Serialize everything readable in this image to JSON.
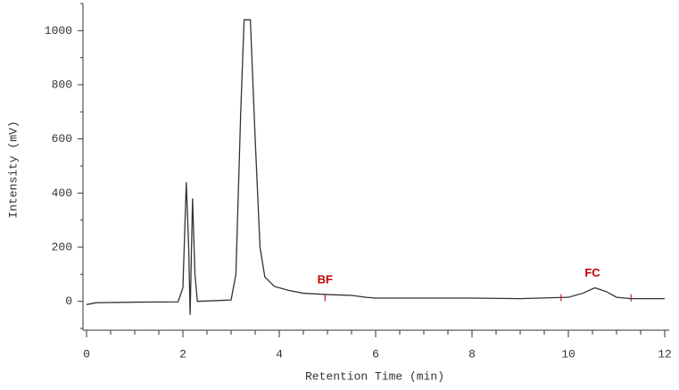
{
  "chart_data": {
    "type": "line",
    "x_label": "Retention Time (min)",
    "y_label": "Intensity (mV)",
    "xlim": [
      0,
      12
    ],
    "ylim": [
      -100,
      1100
    ],
    "xticks": [
      0,
      2,
      4,
      6,
      8,
      10,
      12
    ],
    "yticks": [
      0,
      200,
      400,
      600,
      800,
      1000
    ],
    "xminorticks": [
      0.5,
      1,
      1.5,
      2.5,
      3,
      3.5,
      4.5,
      5,
      5.5,
      6.5,
      7,
      7.5,
      8.5,
      9,
      9.5,
      10.5,
      11,
      11.5
    ],
    "yminorticks": [
      -100,
      100,
      300,
      500,
      700,
      900,
      1100
    ],
    "x": [
      0,
      0.2,
      1,
      1.9,
      2.0,
      2.07,
      2.12,
      2.15,
      2.2,
      2.25,
      2.3,
      3.0,
      3.1,
      3.2,
      3.27,
      3.4,
      3.5,
      3.6,
      3.7,
      3.9,
      4.2,
      4.5,
      5.0,
      5.5,
      5.8,
      6,
      8,
      9,
      10,
      10.3,
      10.55,
      10.8,
      11.0,
      11.3,
      12
    ],
    "series": [
      {
        "color": "#333333",
        "values": [
          -12,
          -5,
          -3,
          -2,
          50,
          440,
          200,
          -50,
          380,
          100,
          0,
          5,
          100,
          700,
          1040,
          1040,
          600,
          200,
          90,
          55,
          40,
          30,
          25,
          22,
          15,
          12,
          12,
          10,
          15,
          30,
          50,
          35,
          15,
          10,
          10
        ]
      }
    ],
    "annotations": [
      {
        "text": "BF",
        "x": 4.95,
        "y": 25
      },
      {
        "text": "FC",
        "x": 10.5,
        "y": 50
      }
    ],
    "baseline_marks": [
      4.95,
      9.85,
      11.3
    ],
    "annotation_color": "#c00000"
  }
}
